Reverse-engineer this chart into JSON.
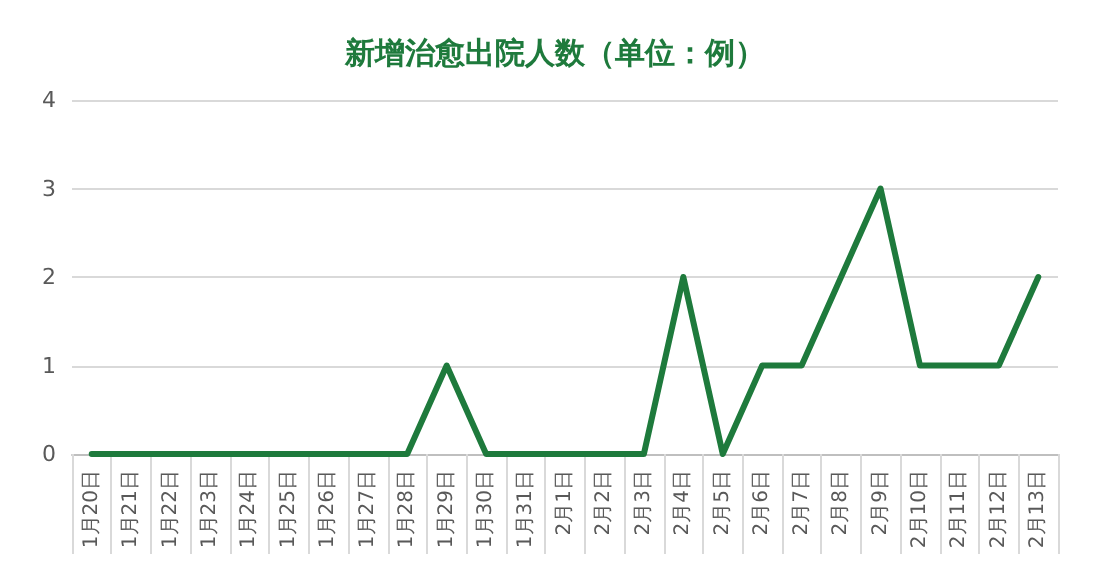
{
  "chart_data": {
    "type": "line",
    "title": "新增治愈出院人数（单位：例）",
    "categories": [
      "1月20日",
      "1月21日",
      "1月22日",
      "1月23日",
      "1月24日",
      "1月25日",
      "1月26日",
      "1月27日",
      "1月28日",
      "1月29日",
      "1月30日",
      "1月31日",
      "2月1日",
      "2月2日",
      "2月3日",
      "2月4日",
      "2月5日",
      "2月6日",
      "2月7日",
      "2月8日",
      "2月9日",
      "2月10日",
      "2月11日",
      "2月12日",
      "2月13日"
    ],
    "series": [
      {
        "color": "#1e7a3c",
        "values": [
          0,
          0,
          0,
          0,
          0,
          0,
          0,
          0,
          0,
          1,
          0,
          0,
          0,
          0,
          0,
          2,
          0,
          1,
          1,
          2,
          3,
          1,
          1,
          1,
          2
        ]
      }
    ],
    "ylim": [
      0,
      4
    ],
    "yticks": [
      0,
      1,
      2,
      3,
      4
    ],
    "grid": "y",
    "marker": "none",
    "line_style": "solid"
  }
}
